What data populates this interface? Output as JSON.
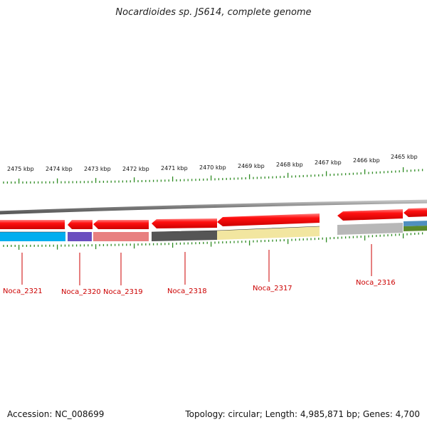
{
  "title": "Nocardioides sp. JS614, complete genome",
  "scale_ticks": [
    "2475 kbp",
    "2474 kbp",
    "2473 kbp",
    "2472 kbp",
    "2471 kbp",
    "2470 kbp",
    "2469 kbp",
    "2468 kbp",
    "2467 kbp",
    "2466 kbp",
    "2465 kbp"
  ],
  "genes": [
    {
      "label": "Noca_2321",
      "color": "#00aeef"
    },
    {
      "label": "Noca_2320",
      "color": "#6a4fbf"
    },
    {
      "label": "Noca_2319",
      "color": "#e88080"
    },
    {
      "label": "Noca_2318",
      "color": "#555555"
    },
    {
      "label": "Noca_2317",
      "color": "#f2e6a0"
    },
    {
      "label": "Noca_2316",
      "color": "#b8b8b8"
    }
  ],
  "colors": {
    "cds_arrow": "#ff0000",
    "backbone": "#808080",
    "tick": "#2e8b22",
    "gene_label": "#cc0000"
  },
  "footer": {
    "accession": "Accession: NC_008699",
    "topology": "Topology: circular; Length: 4,985,871 bp; Genes: 4,700"
  }
}
